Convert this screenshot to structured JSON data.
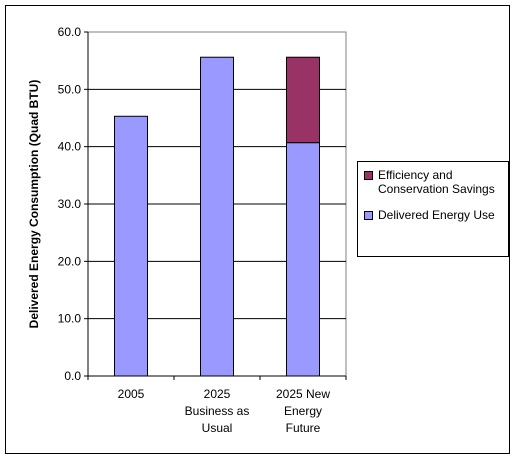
{
  "chart_data": {
    "type": "bar",
    "stacked": true,
    "categories": [
      [
        "2005"
      ],
      [
        "2025",
        "Business as",
        "Usual"
      ],
      [
        "2025 New",
        "Energy",
        "Future"
      ]
    ],
    "series": [
      {
        "name": "Delivered Energy Use",
        "color": "#9999FF",
        "values": [
          45.3,
          55.6,
          40.7
        ]
      },
      {
        "name": "Efficiency and Conservation Savings",
        "color": "#993366",
        "values": [
          0,
          0,
          14.9
        ]
      }
    ],
    "ylabel": "Delivered Energy Consumption (Quad BTU)",
    "ylim": [
      0,
      60
    ],
    "ytick_labels": [
      "0.0",
      "10.0",
      "20.0",
      "30.0",
      "40.0",
      "50.0",
      "60.0"
    ],
    "plot_background": "#ffffff",
    "grid": "horizontal",
    "legend_position": "right",
    "legend_entries": [
      {
        "label_lines": [
          "Efficiency and",
          "Conservation Savings"
        ],
        "color": "#993366"
      },
      {
        "label_lines": [
          "Delivered Energy Use"
        ],
        "color": "#9999FF"
      }
    ]
  }
}
